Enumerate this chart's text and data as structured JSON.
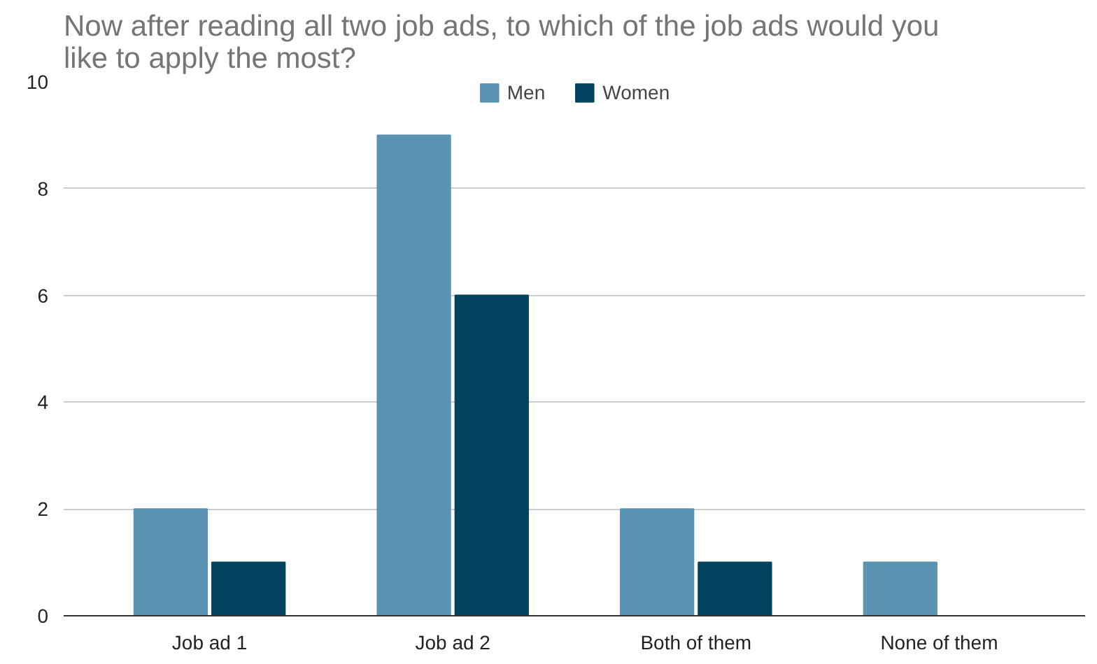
{
  "chart_data": {
    "type": "bar",
    "title": "Now after reading all two job ads, to which of the job ads would you like to apply the most?",
    "categories": [
      "Job ad 1",
      "Job ad 2",
      "Both of them",
      "None of them"
    ],
    "series": [
      {
        "name": "Men",
        "color": "#5b93b3",
        "values": [
          2,
          9,
          2,
          1
        ]
      },
      {
        "name": "Women",
        "color": "#02445f",
        "values": [
          1,
          6,
          1,
          0
        ]
      }
    ],
    "ylim": [
      0,
      10
    ],
    "yticks": [
      0,
      2,
      4,
      6,
      8,
      10
    ],
    "grid": "y",
    "legend": "top"
  }
}
